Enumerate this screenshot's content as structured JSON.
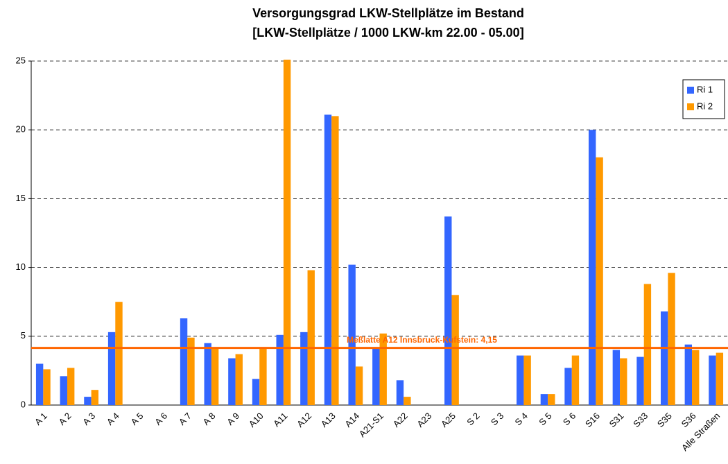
{
  "chart_data": {
    "type": "bar",
    "title": "Versorgungsgrad LKW-Stellplätze im Bestand",
    "subtitle": "[LKW-Stellplätze / 1000 LKW-km 22.00 - 05.00]",
    "categories": [
      "A 1",
      "A 2",
      "A 3",
      "A 4",
      "A 5",
      "A 6",
      "A 7",
      "A 8",
      "A 9",
      "A10",
      "A11",
      "A12",
      "A13",
      "A14",
      "A21-S1",
      "A22",
      "A23",
      "A25",
      "S 2",
      "S 3",
      "S 4",
      "S 5",
      "S 6",
      "S16",
      "S31",
      "S33",
      "S35",
      "S36",
      "Alle Straßen"
    ],
    "series": [
      {
        "name": "Ri 1",
        "color": "#3366ff",
        "values": [
          3.0,
          2.1,
          0.6,
          5.3,
          0,
          0,
          6.3,
          4.5,
          3.4,
          1.9,
          5.1,
          5.3,
          21.1,
          10.2,
          4.1,
          1.8,
          0,
          13.7,
          0,
          0,
          3.6,
          0.8,
          2.7,
          20.0,
          4.0,
          3.5,
          6.8,
          4.4,
          3.6
        ]
      },
      {
        "name": "Ri 2",
        "color": "#ff9900",
        "values": [
          2.6,
          2.7,
          1.1,
          7.5,
          0,
          0,
          4.9,
          4.1,
          3.7,
          4.1,
          25.1,
          9.8,
          21.0,
          2.8,
          5.2,
          0.6,
          0,
          8.0,
          0,
          0,
          3.6,
          0.8,
          3.6,
          18.0,
          3.4,
          8.8,
          9.6,
          4.0,
          3.8
        ]
      }
    ],
    "reference_line": {
      "value": 4.15,
      "label": "Meßlatte A12 Innsbruck-Kufstein: 4,15",
      "color": "#ff6600"
    },
    "ylim": [
      0,
      25
    ],
    "yticks": [
      0,
      5,
      10,
      15,
      20,
      25
    ],
    "grid": true,
    "legend": "top-right"
  }
}
